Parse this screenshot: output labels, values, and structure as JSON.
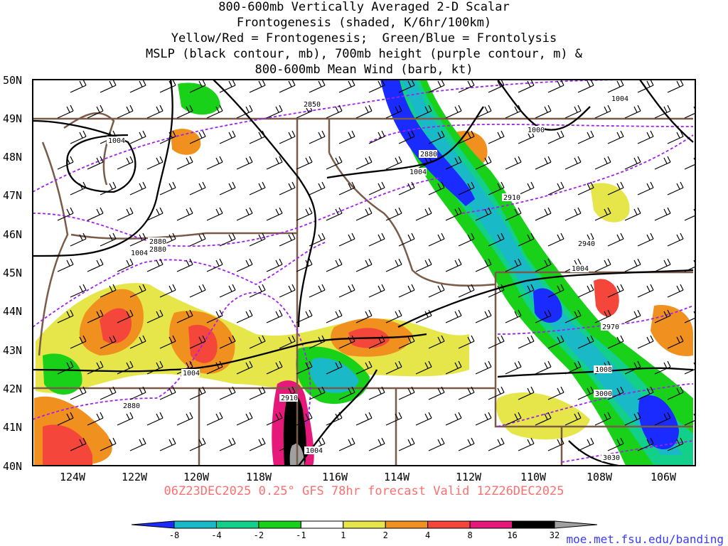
{
  "title": {
    "line1": "800-600mb Vertically Averaged 2-D Scalar",
    "line2": "Frontogenesis (shaded, K/6hr/100km)",
    "line3": "Yellow/Red = Frontogenesis;  Green/Blue = Frontolysis",
    "line4": "MSLP (black contour, mb), 700mb height (purple contour, m) &",
    "line5": "800-600mb Mean Wind (barb, kt)"
  },
  "map": {
    "lat_labels": [
      "50N",
      "49N",
      "48N",
      "47N",
      "46N",
      "45N",
      "44N",
      "43N",
      "42N",
      "41N",
      "40N"
    ],
    "lon_labels": [
      "124W",
      "122W",
      "120W",
      "118W",
      "116W",
      "114W",
      "112W",
      "110W",
      "108W",
      "106W"
    ],
    "mslp_labels": [
      "1004",
      "1004",
      "1004",
      "1000",
      "1004",
      "1004",
      "1004",
      "1008",
      "1004"
    ],
    "height_labels": [
      "2850",
      "2880",
      "2910",
      "2940",
      "2970",
      "3000",
      "3030",
      "2880",
      "2880",
      "2880",
      "2910"
    ],
    "colors": {
      "mslp_contour": "#000000",
      "height_contour": "#a020f0",
      "state_border": "#7a5a48",
      "frontolysis_strong": "#1a2bff",
      "frontolysis_moderate": "#19c6c6",
      "frontolysis_weak": "#00e07a",
      "frontolysis_light": "#19d119",
      "frontogenesis_light": "#e6e64a",
      "frontogenesis_weak": "#f0901e",
      "frontogenesis_moderate": "#f5463c",
      "frontogenesis_strong": "#e6197a",
      "frontogenesis_extreme": "#000000",
      "frontogenesis_max": "#a0a0a0"
    }
  },
  "footer": {
    "valid_text": "06Z23DEC2025 0.25° GFS 78hr forecast Valid 12Z26DEC2025",
    "credit": "moe.met.fsu.edu/banding"
  },
  "colorbar": {
    "labels": [
      "-8",
      "-4",
      "-2",
      "-1",
      "1",
      "2",
      "4",
      "8",
      "16",
      "32"
    ],
    "colors": [
      "#1a2bff",
      "#19b9c8",
      "#12d08a",
      "#19d119",
      "#ffffff",
      "#e6e64a",
      "#f0901e",
      "#f5463c",
      "#e6197a",
      "#000000",
      "#a0a0a0"
    ]
  }
}
